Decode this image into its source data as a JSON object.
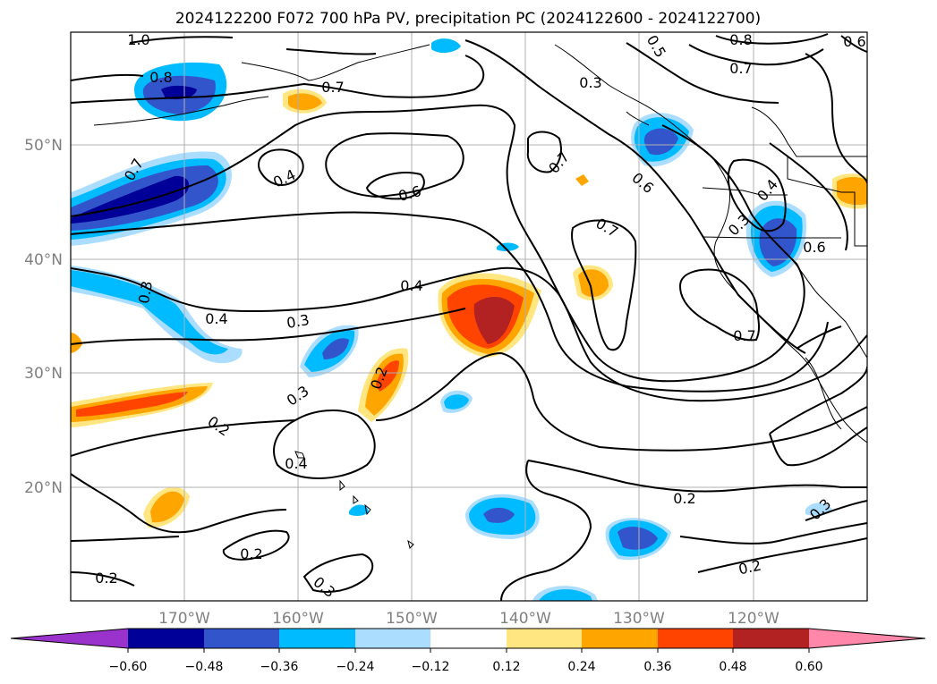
{
  "title": "2024122200 F072 700 hPa PV, precipitation PC (2024122600 - 2024122700)",
  "lon_ticks": [
    "170°W",
    "160°W",
    "150°W",
    "140°W",
    "130°W",
    "120°W"
  ],
  "lat_ticks": [
    "50°N",
    "40°N",
    "30°N",
    "20°N"
  ],
  "colorbar": {
    "colors": [
      "#9933cc",
      "#000099",
      "#3355cc",
      "#00bbff",
      "#aaddff",
      "#ffffff",
      "#ffe680",
      "#ffa500",
      "#ff4400",
      "#b22222",
      "#ff88aa"
    ],
    "tick_labels": [
      "−0.60",
      "−0.48",
      "−0.36",
      "−0.24",
      "−0.12",
      "0.12",
      "0.24",
      "0.36",
      "0.48",
      "0.60"
    ]
  },
  "contour_labels": [
    {
      "text": "1.0"
    },
    {
      "text": "0.8"
    },
    {
      "text": "0.7"
    },
    {
      "text": "0.5"
    },
    {
      "text": "0.8"
    },
    {
      "text": "0.7"
    },
    {
      "text": "0.6"
    },
    {
      "text": "0.3"
    },
    {
      "text": "0.7"
    },
    {
      "text": "0.4"
    },
    {
      "text": "0.6"
    },
    {
      "text": "0.7"
    },
    {
      "text": "0.6"
    },
    {
      "text": "0.4"
    },
    {
      "text": "0.3"
    },
    {
      "text": "0.6"
    },
    {
      "text": "0.7"
    },
    {
      "text": "0.3"
    },
    {
      "text": "0.4"
    },
    {
      "text": "0.4"
    },
    {
      "text": "0.3"
    },
    {
      "text": "0.7"
    },
    {
      "text": "0.2"
    },
    {
      "text": "0.3"
    },
    {
      "text": "0.2"
    },
    {
      "text": "0.4"
    },
    {
      "text": "0.2"
    },
    {
      "text": "0.2"
    },
    {
      "text": "0.2"
    },
    {
      "text": "0.2"
    },
    {
      "text": "0.3"
    },
    {
      "text": "0.3"
    }
  ]
}
